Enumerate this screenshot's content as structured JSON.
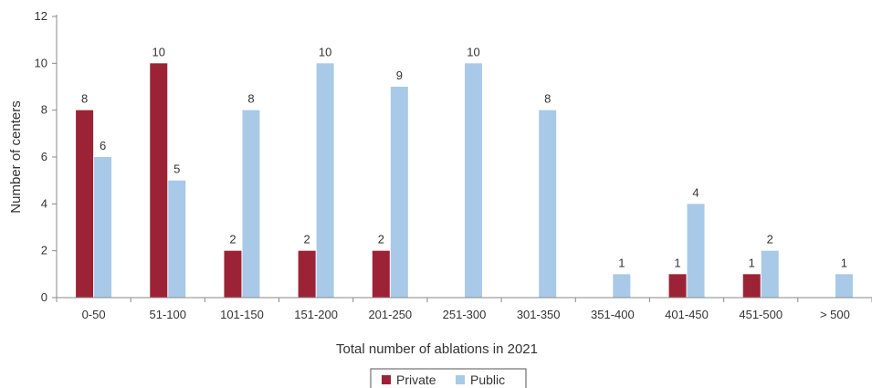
{
  "chart_data": {
    "type": "bar",
    "xlabel": "Total number of ablations in 2021",
    "ylabel": "Number of centers",
    "ylim": [
      0,
      12
    ],
    "yticks": [
      0,
      2,
      4,
      6,
      8,
      10,
      12
    ],
    "grid": false,
    "legend_position": "bottom-center",
    "categories": [
      "0-50",
      "51-100",
      "101-150",
      "151-200",
      "201-250",
      "251-300",
      "301-350",
      "351-400",
      "401-450",
      "451-500",
      "> 500"
    ],
    "series": [
      {
        "name": "Private",
        "color": "#9b2335",
        "values": [
          8,
          10,
          2,
          2,
          2,
          null,
          null,
          null,
          1,
          1,
          null
        ]
      },
      {
        "name": "Public",
        "color": "#a9c9e8",
        "values": [
          6,
          5,
          8,
          10,
          9,
          10,
          8,
          1,
          4,
          2,
          1
        ]
      }
    ]
  }
}
